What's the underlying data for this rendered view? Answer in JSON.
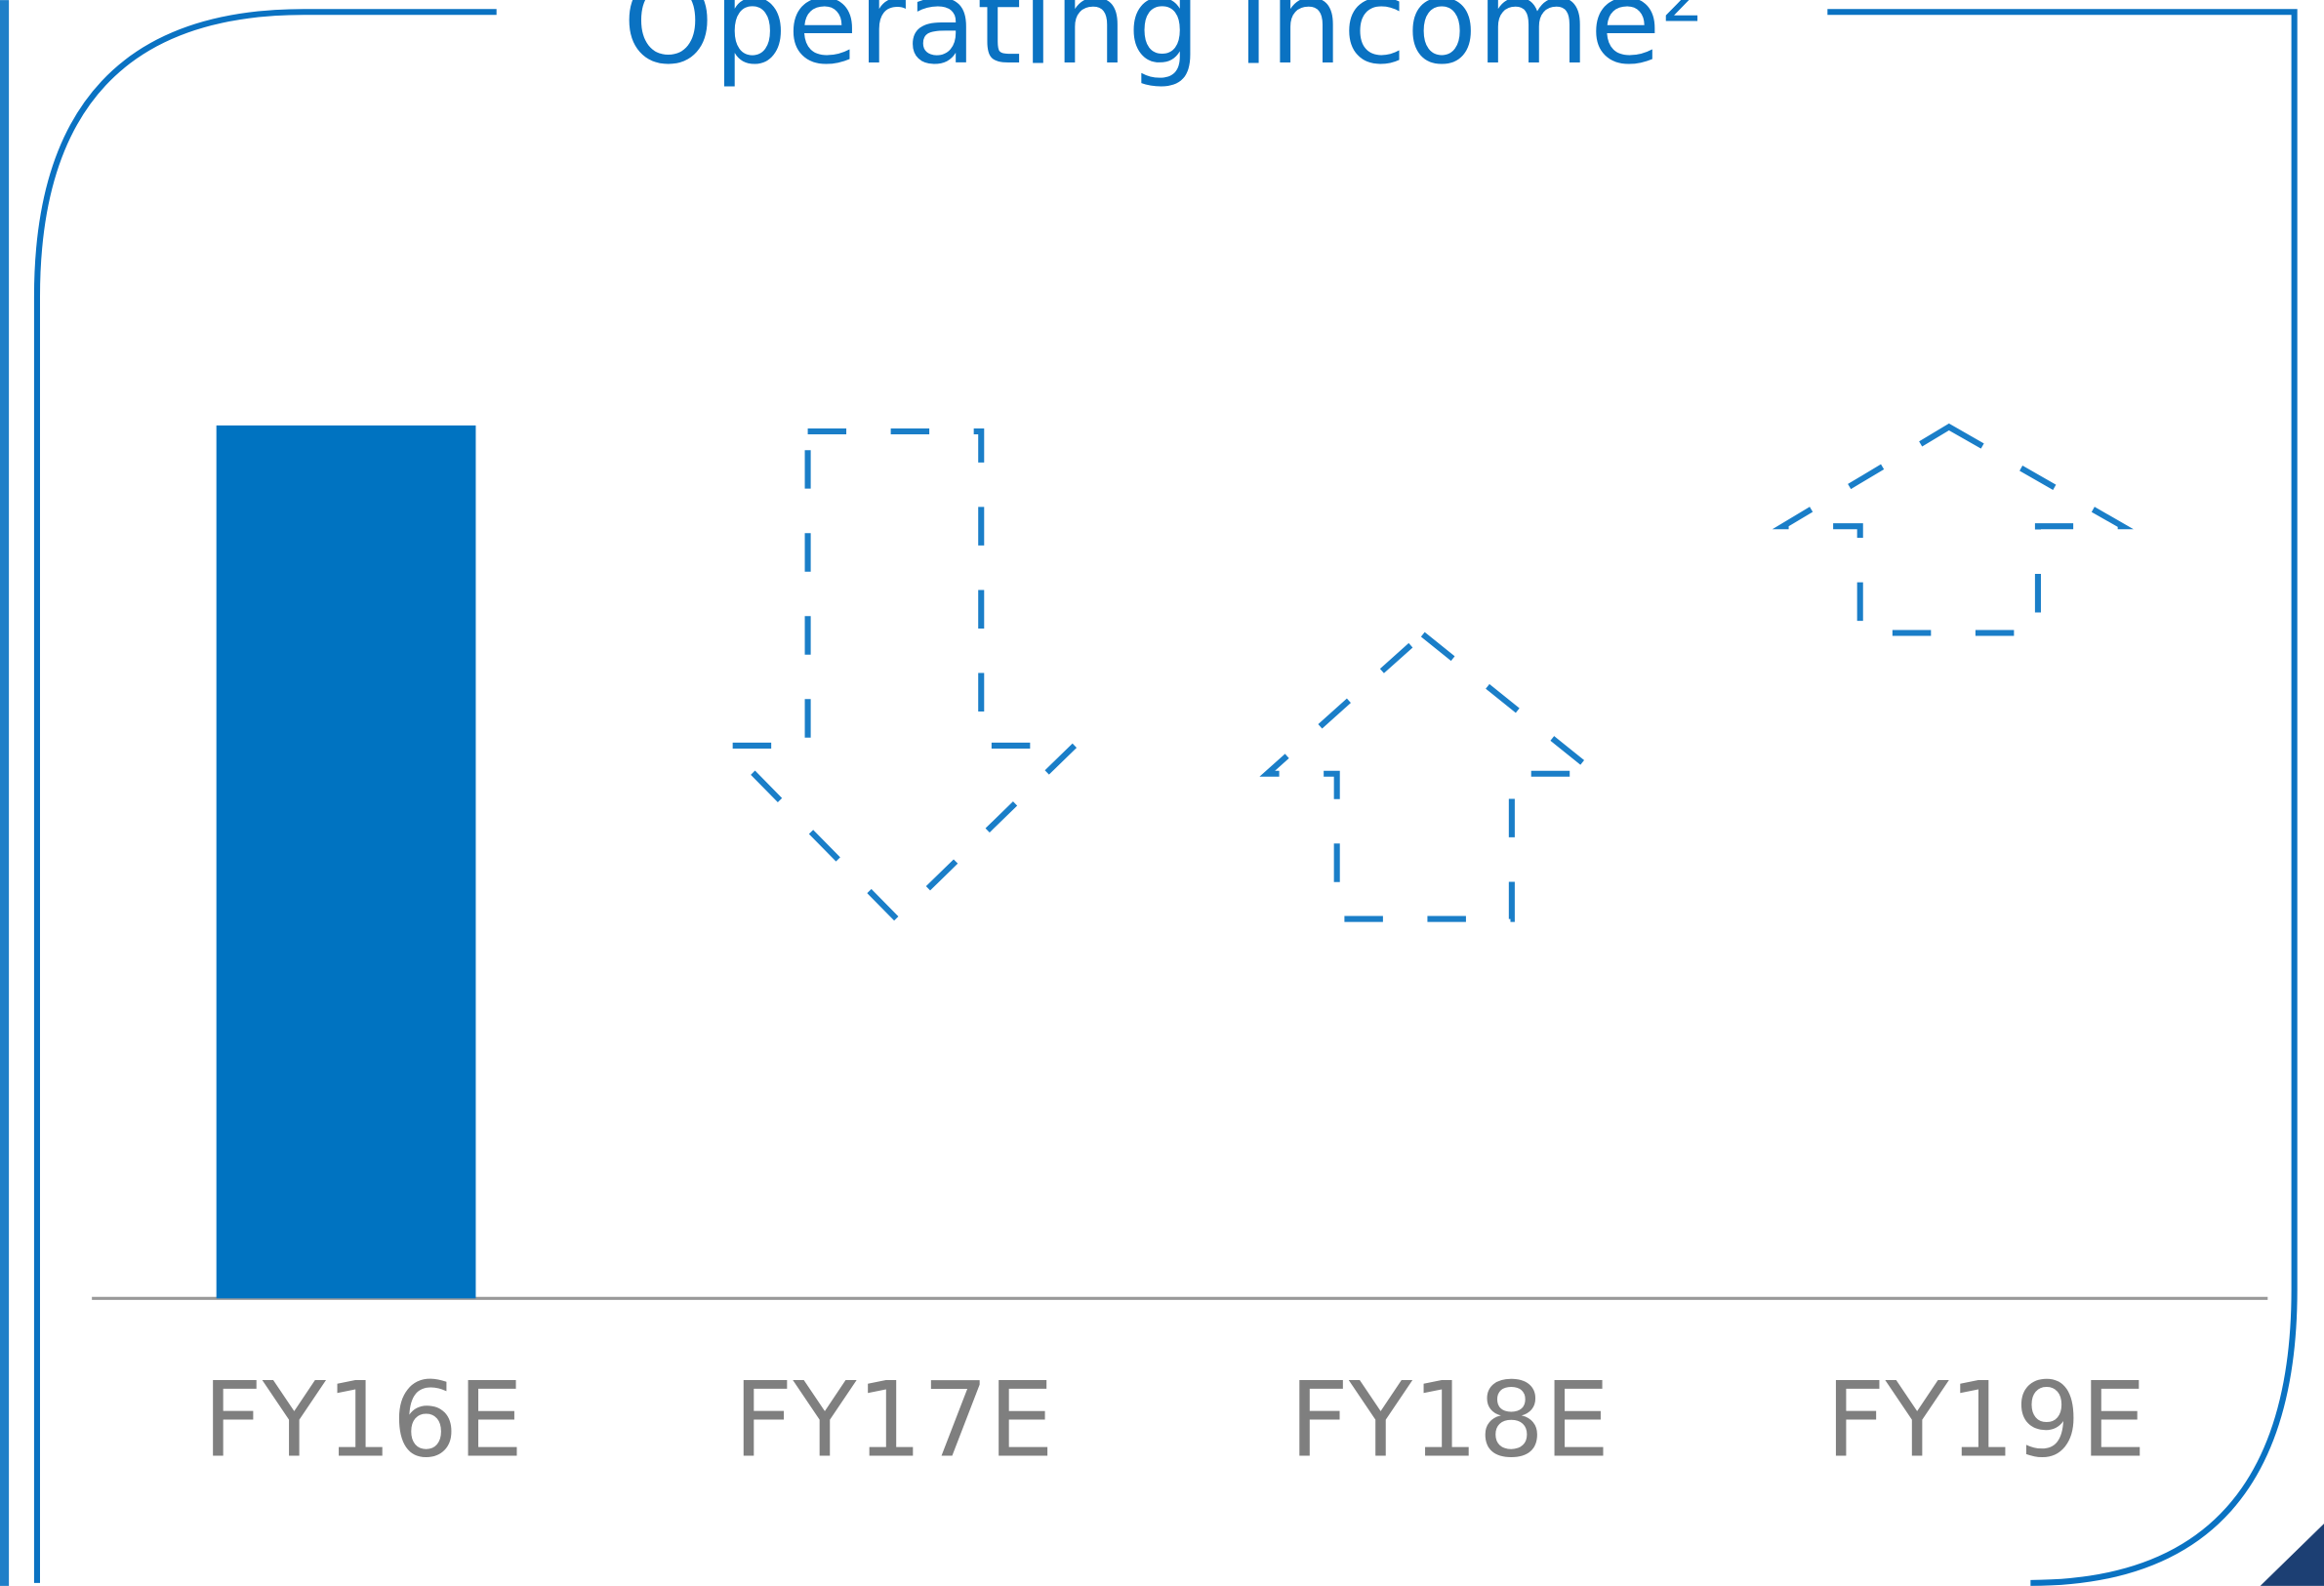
{
  "chart_data": {
    "type": "bar",
    "title": "Operating income",
    "title_note": "2",
    "categories": [
      "FY16E",
      "FY17E",
      "FY18E",
      "FY19E"
    ],
    "values": [
      100,
      null,
      null,
      null
    ],
    "color": "#0073c1"
  }
}
